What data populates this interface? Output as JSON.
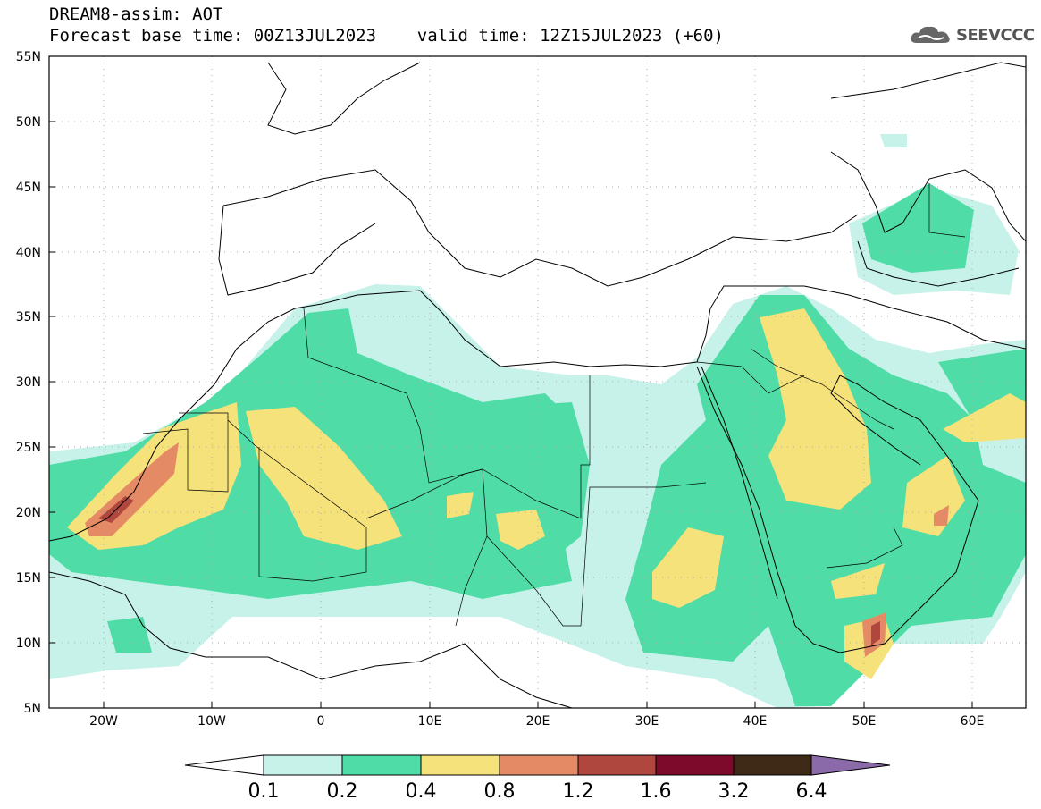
{
  "header": {
    "line1": "DREAM8-assim: AOT",
    "line2": "Forecast base time: 00Z13JUL2023    valid time: 12Z15JUL2023 (+60)",
    "logo_text": "SEEVCCC",
    "logo_icon": "cloud-icon"
  },
  "map": {
    "lon_ticks": [
      "20W",
      "10W",
      "0",
      "10E",
      "20E",
      "30E",
      "40E",
      "50E",
      "60E"
    ],
    "lat_ticks": [
      "55N",
      "50N",
      "45N",
      "40N",
      "35N",
      "30N",
      "25N",
      "20N",
      "15N",
      "10N",
      "5N"
    ]
  },
  "colorbar": {
    "labels": [
      "0.1",
      "0.2",
      "0.4",
      "0.8",
      "1.2",
      "1.6",
      "3.2",
      "6.4"
    ],
    "colors": [
      "#ffffff",
      "#c6f2ea",
      "#4fdca6",
      "#f6e27a",
      "#e48b66",
      "#b0473f",
      "#7d0a2a",
      "#3f2a17",
      "#8a6aa9"
    ]
  }
}
